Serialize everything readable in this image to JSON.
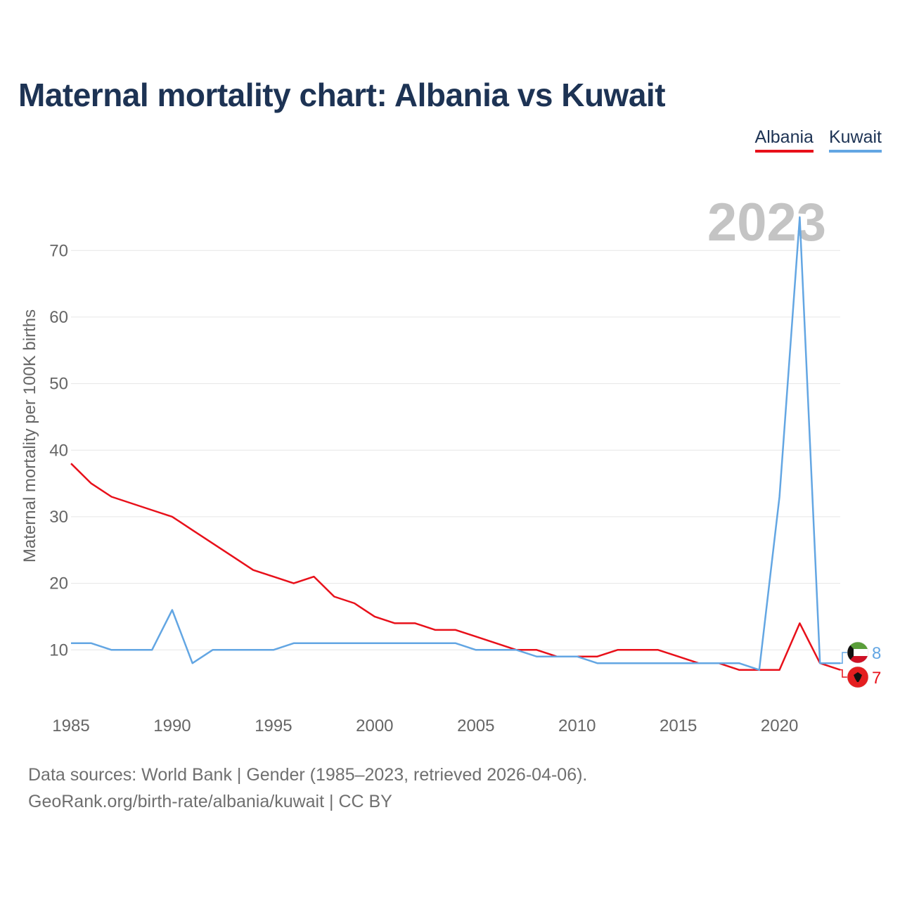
{
  "title": "Maternal mortality chart: Albania vs Kuwait",
  "legend": [
    {
      "name": "Albania",
      "color": "#e8101a"
    },
    {
      "name": "Kuwait",
      "color": "#63a6e3"
    }
  ],
  "source": {
    "line1": "Data sources: World Bank | Gender (1985–2023, retrieved 2026-04-06).",
    "line2": "GeoRank.org/birth-rate/albania/kuwait | CC BY"
  },
  "chart_data": {
    "type": "line",
    "title": "Maternal mortality chart: Albania vs Kuwait",
    "ylabel": "Maternal mortality per 100K births",
    "xlabel": "",
    "year_label": "2023",
    "xlim": [
      1985,
      2023
    ],
    "ylim": [
      2,
      77
    ],
    "x_ticks": [
      1985,
      1990,
      1995,
      2000,
      2005,
      2010,
      2015,
      2020
    ],
    "y_ticks": [
      10,
      20,
      30,
      40,
      50,
      60,
      70
    ],
    "x": [
      1985,
      1986,
      1987,
      1988,
      1989,
      1990,
      1991,
      1992,
      1993,
      1994,
      1995,
      1996,
      1997,
      1998,
      1999,
      2000,
      2001,
      2002,
      2003,
      2004,
      2005,
      2006,
      2007,
      2008,
      2009,
      2010,
      2011,
      2012,
      2013,
      2014,
      2015,
      2016,
      2017,
      2018,
      2019,
      2020,
      2021,
      2022,
      2023
    ],
    "series": [
      {
        "name": "Albania",
        "color": "#e8101a",
        "end_label": "7",
        "flag": "albania-flag",
        "values": [
          38,
          35,
          33,
          32,
          31,
          30,
          28,
          26,
          24,
          22,
          21,
          20,
          21,
          18,
          17,
          15,
          14,
          14,
          13,
          13,
          12,
          11,
          10,
          10,
          9,
          9,
          9,
          10,
          10,
          10,
          9,
          8,
          8,
          7,
          7,
          7,
          14,
          8,
          7
        ]
      },
      {
        "name": "Kuwait",
        "color": "#63a6e3",
        "end_label": "8",
        "flag": "kuwait-flag",
        "values": [
          11,
          11,
          10,
          10,
          10,
          16,
          8,
          10,
          10,
          10,
          10,
          11,
          11,
          11,
          11,
          11,
          11,
          11,
          11,
          11,
          10,
          10,
          10,
          9,
          9,
          9,
          8,
          8,
          8,
          8,
          8,
          8,
          8,
          8,
          7,
          33,
          75,
          8,
          8
        ]
      }
    ]
  }
}
